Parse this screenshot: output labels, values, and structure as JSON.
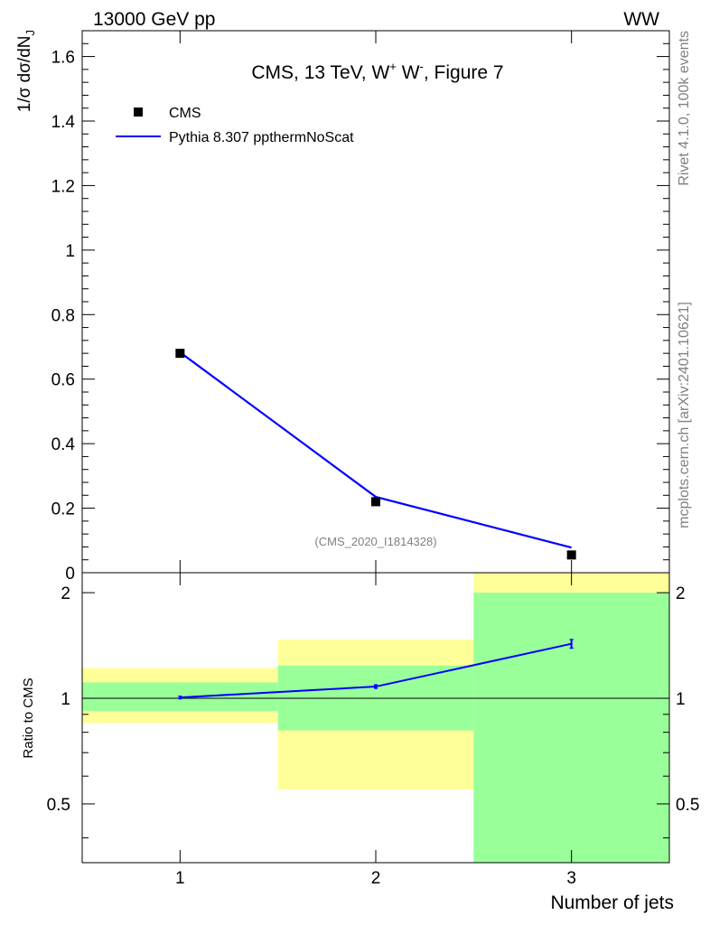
{
  "header": {
    "left": "13000 GeV pp",
    "right": "WW"
  },
  "side_labels": {
    "rivet": "Rivet 4.1.0,  100k events",
    "mcplots": "mcplots.cern.ch [arXiv:2401.10621]"
  },
  "colors": {
    "mc_line": "#0000ff",
    "band_inner": "#99ff99",
    "band_outer": "#ffff99",
    "data_marker": "#000000"
  },
  "chart_data": {
    "type": "line",
    "title": "CMS, 13 TeV, W+ W-, Figure 7",
    "title_parts": {
      "main": "CMS, 13 TeV, W",
      "sup1": "+",
      "mid": " W",
      "sup2": "-",
      "tail": ", Figure 7"
    },
    "analysis_id": "(CMS_2020_I1814328)",
    "xlabel": "Number of jets",
    "ylabel": "1/σ dσ/dN",
    "ylabel_sub": "J",
    "ratio_ylabel": "Ratio to CMS",
    "xlim": [
      0.5,
      3.5
    ],
    "ylim": [
      0,
      1.68
    ],
    "x_ticks": [
      1,
      2,
      3
    ],
    "x_tick_labels": [
      "1",
      "2",
      "3"
    ],
    "y_ticks": [
      0.2,
      0.4,
      0.6,
      0.8,
      1.0,
      1.2,
      1.4,
      1.6
    ],
    "y_tick_labels": [
      "0.2",
      "0.4",
      "0.6",
      "0.8",
      "1",
      "1.2",
      "1.4",
      "1.6"
    ],
    "y_zero_label": "0",
    "legend": [
      {
        "name": "CMS",
        "style": "marker"
      },
      {
        "name": "Pythia 8.307 ppthermNoScat",
        "style": "line"
      }
    ],
    "series": [
      {
        "name": "CMS",
        "x": [
          1,
          2,
          3
        ],
        "values": [
          0.68,
          0.22,
          0.055
        ]
      },
      {
        "name": "Pythia 8.307 ppthermNoScat",
        "x": [
          1,
          2,
          3
        ],
        "values": [
          0.683,
          0.235,
          0.078
        ]
      }
    ],
    "ratio": {
      "scale": "log",
      "ylim": [
        0.34,
        2.28
      ],
      "y_ticks": [
        0.5,
        1,
        2
      ],
      "y_tick_labels": [
        "0.5",
        "1",
        "2"
      ],
      "bins": [
        {
          "lo": 0.5,
          "hi": 1.5,
          "inner": [
            0.92,
            1.11
          ],
          "outer": [
            0.85,
            1.22
          ]
        },
        {
          "lo": 1.5,
          "hi": 2.5,
          "inner": [
            0.81,
            1.24
          ],
          "outer": [
            0.55,
            1.47
          ]
        },
        {
          "lo": 2.5,
          "hi": 3.5,
          "inner": [
            0.34,
            2.0
          ],
          "outer": [
            0.34,
            2.28
          ]
        }
      ],
      "mc_x": [
        1,
        2,
        3
      ],
      "mc_values": [
        1.005,
        1.08,
        1.43
      ],
      "mc_errors": [
        0.008,
        0.012,
        0.04
      ]
    }
  }
}
